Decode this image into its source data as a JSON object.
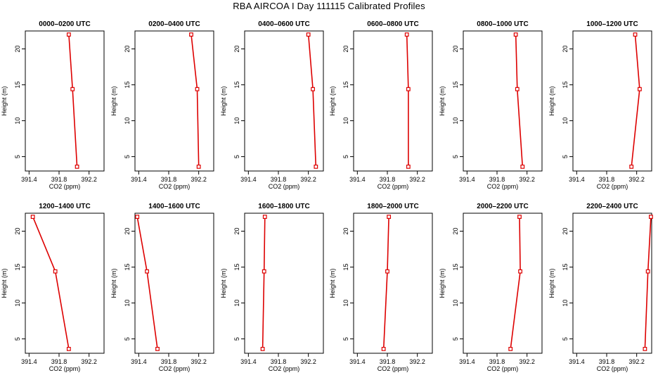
{
  "figure_title": "RBA AIRCOA I  Day 111115  Calibrated Profiles",
  "colors": {
    "series": "#dd0000",
    "axis": "#000000",
    "background": "#ffffff"
  },
  "chart_data": [
    {
      "type": "line",
      "title": "0000–0200 UTC",
      "xlabel": "CO2 (ppm)",
      "ylabel": "Height (m)",
      "xlim": [
        391.35,
        392.4
      ],
      "ylim": [
        3,
        22.5
      ],
      "xticks": [
        391.4,
        391.8,
        392.2
      ],
      "xtick_labels": [
        "391.4",
        "391.8",
        "392.2"
      ],
      "yticks": [
        5,
        10,
        15,
        20
      ],
      "ytick_labels": [
        "5",
        "10",
        "15",
        "20"
      ],
      "x": [
        391.93,
        391.98,
        392.04
      ],
      "y": [
        22,
        14.4,
        3.6
      ]
    },
    {
      "type": "line",
      "title": "0200–0400 UTC",
      "xlabel": "CO2 (ppm)",
      "ylabel": "Height (m)",
      "xlim": [
        391.35,
        392.4
      ],
      "ylim": [
        3,
        22.5
      ],
      "xticks": [
        391.4,
        391.8,
        392.2
      ],
      "xtick_labels": [
        "391.4",
        "391.8",
        "392.2"
      ],
      "yticks": [
        5,
        10,
        15,
        20
      ],
      "ytick_labels": [
        "5",
        "10",
        "15",
        "20"
      ],
      "x": [
        392.1,
        392.18,
        392.2
      ],
      "y": [
        22,
        14.4,
        3.6
      ]
    },
    {
      "type": "line",
      "title": "0400–0600 UTC",
      "xlabel": "CO2 (ppm)",
      "ylabel": "Height (m)",
      "xlim": [
        391.35,
        392.4
      ],
      "ylim": [
        3,
        22.5
      ],
      "xticks": [
        391.4,
        391.8,
        392.2
      ],
      "xtick_labels": [
        "391.4",
        "391.8",
        "392.2"
      ],
      "yticks": [
        5,
        10,
        15,
        20
      ],
      "ytick_labels": [
        "5",
        "10",
        "15",
        "20"
      ],
      "x": [
        392.2,
        392.26,
        392.3
      ],
      "y": [
        22,
        14.4,
        3.6
      ]
    },
    {
      "type": "line",
      "title": "0600–0800 UTC",
      "xlabel": "CO2 (ppm)",
      "ylabel": "Height (m)",
      "xlim": [
        391.35,
        392.4
      ],
      "ylim": [
        3,
        22.5
      ],
      "xticks": [
        391.4,
        391.8,
        392.2
      ],
      "xtick_labels": [
        "391.4",
        "391.8",
        "392.2"
      ],
      "yticks": [
        5,
        10,
        15,
        20
      ],
      "ytick_labels": [
        "5",
        "10",
        "15",
        "20"
      ],
      "x": [
        392.06,
        392.08,
        392.08
      ],
      "y": [
        22,
        14.4,
        3.6
      ]
    },
    {
      "type": "line",
      "title": "0800–1000 UTC",
      "xlabel": "CO2 (ppm)",
      "ylabel": "Height (m)",
      "xlim": [
        391.35,
        392.4
      ],
      "ylim": [
        3,
        22.5
      ],
      "xticks": [
        391.4,
        391.8,
        392.2
      ],
      "xtick_labels": [
        "391.4",
        "391.8",
        "392.2"
      ],
      "yticks": [
        5,
        10,
        15,
        20
      ],
      "ytick_labels": [
        "5",
        "10",
        "15",
        "20"
      ],
      "x": [
        392.05,
        392.07,
        392.14
      ],
      "y": [
        22,
        14.4,
        3.6
      ]
    },
    {
      "type": "line",
      "title": "1000–1200 UTC",
      "xlabel": "CO2 (ppm)",
      "ylabel": "Height (m)",
      "xlim": [
        391.35,
        392.4
      ],
      "ylim": [
        3,
        22.5
      ],
      "xticks": [
        391.4,
        391.8,
        392.2
      ],
      "xtick_labels": [
        "391.4",
        "391.8",
        "392.2"
      ],
      "yticks": [
        5,
        10,
        15,
        20
      ],
      "ytick_labels": [
        "5",
        "10",
        "15",
        "20"
      ],
      "x": [
        392.18,
        392.24,
        392.13
      ],
      "y": [
        22,
        14.4,
        3.6
      ]
    },
    {
      "type": "line",
      "title": "1200–1400 UTC",
      "xlabel": "CO2 (ppm)",
      "ylabel": "Height (m)",
      "xlim": [
        391.35,
        392.4
      ],
      "ylim": [
        3,
        22.5
      ],
      "xticks": [
        391.4,
        391.8,
        392.2
      ],
      "xtick_labels": [
        "391.4",
        "391.8",
        "392.2"
      ],
      "yticks": [
        5,
        10,
        15,
        20
      ],
      "ytick_labels": [
        "5",
        "10",
        "15",
        "20"
      ],
      "x": [
        391.45,
        391.75,
        391.93
      ],
      "y": [
        22,
        14.4,
        3.6
      ]
    },
    {
      "type": "line",
      "title": "1400–1600 UTC",
      "xlabel": "CO2 (ppm)",
      "ylabel": "Height (m)",
      "xlim": [
        391.35,
        392.4
      ],
      "ylim": [
        3,
        22.5
      ],
      "xticks": [
        391.4,
        391.8,
        392.2
      ],
      "xtick_labels": [
        "391.4",
        "391.8",
        "392.2"
      ],
      "yticks": [
        5,
        10,
        15,
        20
      ],
      "ytick_labels": [
        "5",
        "10",
        "15",
        "20"
      ],
      "x": [
        391.38,
        391.51,
        391.65
      ],
      "y": [
        22,
        14.4,
        3.6
      ]
    },
    {
      "type": "line",
      "title": "1600–1800 UTC",
      "xlabel": "CO2 (ppm)",
      "ylabel": "Height (m)",
      "xlim": [
        391.35,
        392.4
      ],
      "ylim": [
        3,
        22.5
      ],
      "xticks": [
        391.4,
        391.8,
        392.2
      ],
      "xtick_labels": [
        "391.4",
        "391.8",
        "392.2"
      ],
      "yticks": [
        5,
        10,
        15,
        20
      ],
      "ytick_labels": [
        "5",
        "10",
        "15",
        "20"
      ],
      "x": [
        391.62,
        391.61,
        391.59
      ],
      "y": [
        22,
        14.4,
        3.6
      ]
    },
    {
      "type": "line",
      "title": "1800–2000 UTC",
      "xlabel": "CO2 (ppm)",
      "ylabel": "Height (m)",
      "xlim": [
        391.35,
        392.4
      ],
      "ylim": [
        3,
        22.5
      ],
      "xticks": [
        391.4,
        391.8,
        392.2
      ],
      "xtick_labels": [
        "391.4",
        "391.8",
        "392.2"
      ],
      "yticks": [
        5,
        10,
        15,
        20
      ],
      "ytick_labels": [
        "5",
        "10",
        "15",
        "20"
      ],
      "x": [
        391.82,
        391.8,
        391.75
      ],
      "y": [
        22,
        14.4,
        3.6
      ]
    },
    {
      "type": "line",
      "title": "2000–2200 UTC",
      "xlabel": "CO2 (ppm)",
      "ylabel": "Height (m)",
      "xlim": [
        391.35,
        392.4
      ],
      "ylim": [
        3,
        22.5
      ],
      "xticks": [
        391.4,
        391.8,
        392.2
      ],
      "xtick_labels": [
        "391.4",
        "391.8",
        "392.2"
      ],
      "yticks": [
        5,
        10,
        15,
        20
      ],
      "ytick_labels": [
        "5",
        "10",
        "15",
        "20"
      ],
      "x": [
        392.1,
        392.11,
        391.98
      ],
      "y": [
        22,
        14.4,
        3.6
      ]
    },
    {
      "type": "line",
      "title": "2200–2400 UTC",
      "xlabel": "CO2 (ppm)",
      "ylabel": "Height (m)",
      "xlim": [
        391.35,
        392.4
      ],
      "ylim": [
        3,
        22.5
      ],
      "xticks": [
        391.4,
        391.8,
        392.2
      ],
      "xtick_labels": [
        "391.4",
        "391.8",
        "392.2"
      ],
      "yticks": [
        5,
        10,
        15,
        20
      ],
      "ytick_labels": [
        "5",
        "10",
        "15",
        "20"
      ],
      "x": [
        392.39,
        392.35,
        392.31
      ],
      "y": [
        22,
        14.4,
        3.6
      ]
    }
  ]
}
